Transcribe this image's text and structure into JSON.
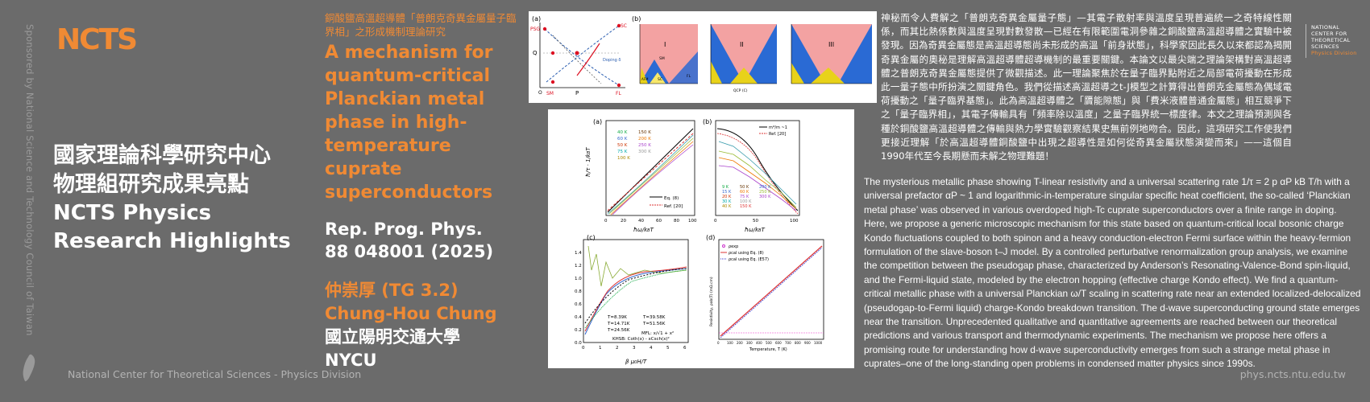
{
  "sponsor_text": "Sponsored by National Science and Technology Council of Taiwan",
  "logo_text": "NCTS",
  "main_title": {
    "zh_line1": "國家理論科學研究中心",
    "zh_line2": "物理組研究成果亮點",
    "en_line1": "NCTS Physics",
    "en_line2": "Research Highlights"
  },
  "paper": {
    "zh_title": "銅酸鹽高溫超導體「普朗克奇異金屬量子臨界相」之形成機制理論研究",
    "en_title": "A mechanism for quantum-critical Planckian metal phase in high-temperature cuprate superconductors",
    "journal_line1": "Rep. Prog. Phys.",
    "journal_line2": "88 048001 (2025)",
    "author_zh": "仲崇厚 (TG 3.2)",
    "author_en": "Chung-Hou Chung",
    "affiliation_zh": "國立陽明交通大學",
    "affiliation_en": "NYCU"
  },
  "right_logo": {
    "line1": "NATIONAL",
    "line2": "CENTER FOR",
    "line3": "THEORETICAL",
    "line4": "SCIENCES",
    "line5": "Physics Division"
  },
  "zh_abstract": "神秘而令人費解之「普朗克奇異金屬量子態」—其電子散射率與溫度呈現普遍統一之奇特線性關係，而其比熱係數與溫度呈現對數發散—已經在有限範圍電洞參雜之銅酸鹽高溫超導體之實驗中被發現。因為奇異金屬態是高溫超導態尚未形成的高溫「前身狀態」，科學家因此長久以來都認為揭開奇異金屬的奧秘是理解高溫超導體超導機制的最重要關鍵。本論文以最尖端之理論架構對高溫超導體之普朗克奇異金屬態提供了微觀描述。此一理論聚焦於在量子臨界點附近之局部電荷擾動在形成此一量子態中所扮演之關鍵角色。我們從描述高溫超導之t-J模型之計算得出普朗克金屬態為偶域電荷擾動之「量子臨界基態」。此為高溫超導體之「贗能隙態」與「費米液體普通金屬態」相互競爭下之「量子臨界相」，其電子傳輸具有「頻率除以溫度」之量子臨界統一標度律。本文之理論預測與各種於銅酸鹽高溫超導體之傳輸與熱力學實驗觀察結果史無前例地吻合。因此，這項研究工作使我們更接近理解「於高溫超導體銅酸鹽中出現之超導性是如何從奇異金屬狀態演變而來」——這個自1990年代至今長期懸而未解之物理難題！",
  "en_abstract": "The mysterious metallic phase showing T-linear resistivity and a universal scattering rate 1/τ = 2 p αP kB T/h with a universal prefactor αP ~ 1 and logarithmic-in-temperature singular specific heat coefficient, the so-called ‘Planckian metal phase’ was observed in various overdoped high-Tc cuprate superconductors over a finite range in doping. Here, we propose a generic microscopic mechanism for this state based on quantum-critical local bosonic charge Kondo fluctuations coupled to both spinon and a heavy conduction-electron Fermi surface within the heavy-fermion formulation of the slave-boson t–J model. By a controlled perturbative renormalization group analysis, we examine the competition between the pseudogap phase, characterized by Anderson’s Resonating-Valence-Bond spin-liquid, and the Fermi-liquid state, modeled by the electron hopping (effective charge Kondo effect). We find a quantum-critical metallic phase with a universal Planckian ω/T scaling in scattering rate near an extended localized-delocalized (pseudogap-to-Fermi liquid) charge-Kondo breakdown transition. The d-wave superconducting ground state emerges near the transition. Unprecedented qualitative and quantitative agreements are reached between our theoretical predictions and various transport and thermodynamic experiments. The mechanism we propose here offers a promising route for understanding how d-wave superconductivity emerges from such a strange metal phase in cuprates–one of the long-standing open problems in condensed matter physics since 1990s.",
  "footer_left": "National Center for Theoretical Sciences - Physics Division",
  "footer_right": "phys.ncts.ntu.edu.tw",
  "figure_top": {
    "panel_a": "(a)",
    "panel_b": "(b)",
    "roman1": "I",
    "roman2": "II",
    "roman3": "III",
    "psg": "PSG",
    "sc": "SC",
    "q": "Q",
    "sm": "SM",
    "p": "P",
    "fl": "FL",
    "doping": "Doping δ",
    "o_label": "O",
    "sc_phase": "SC",
    "afm": "AFM",
    "fl_phase": "FL",
    "sm_phase": "SM",
    "qcp": "QCP (C)"
  },
  "figure_main": {
    "panel_a": "(a)",
    "panel_b": "(b)",
    "panel_c": "(c)",
    "panel_d": "(d)",
    "a_legend": [
      "40 K",
      "60 K",
      "50 K",
      "75 K",
      "100 K",
      "150 K",
      "200 K",
      "250 K",
      "300 K"
    ],
    "a_eq": "Eq. (8)",
    "a_ref": "Ref. [20]",
    "b_legend_top": "m*/m ~1",
    "b_ref": "Ref. [20]",
    "b_legend": [
      "9 K",
      "15 K",
      "20 K",
      "30 K",
      "40 K",
      "50 K",
      "60 K",
      "75 K",
      "100 K",
      "150 K",
      "200 K",
      "250 K",
      "300 K"
    ],
    "c_legend": [
      "T=8.39K",
      "T=14.71K",
      "T=24.56K",
      "T=39.58K",
      "T=51.56K"
    ],
    "c_mfl": "MFL: x/√1 + x²",
    "c_khsb": "KHSB: Coth(x) - xCsch(x)²",
    "d_legend": [
      "ρexp",
      "ρcal using Eq. (8)",
      "ρcal using Eq. (E57)"
    ],
    "d_xlabel": "Temperature, T (K)",
    "d_ylabel": "Resistivity, ρab(T) (mΩ.cm)",
    "a_ticks_x": [
      "0",
      "20",
      "40",
      "60",
      "80",
      "100"
    ],
    "b_ticks_x": [
      "0",
      "50",
      "100"
    ],
    "c_ticks_x": [
      "0",
      "1",
      "2",
      "3",
      "4",
      "5",
      "6"
    ],
    "c_ticks_y": [
      "0.0",
      "0.2",
      "0.4",
      "0.6",
      "0.8",
      "1.0",
      "1.2",
      "1.4"
    ],
    "d_ticks_x": [
      "0",
      "100",
      "200",
      "300",
      "400",
      "500",
      "600",
      "700",
      "800",
      "900",
      "1000"
    ]
  }
}
